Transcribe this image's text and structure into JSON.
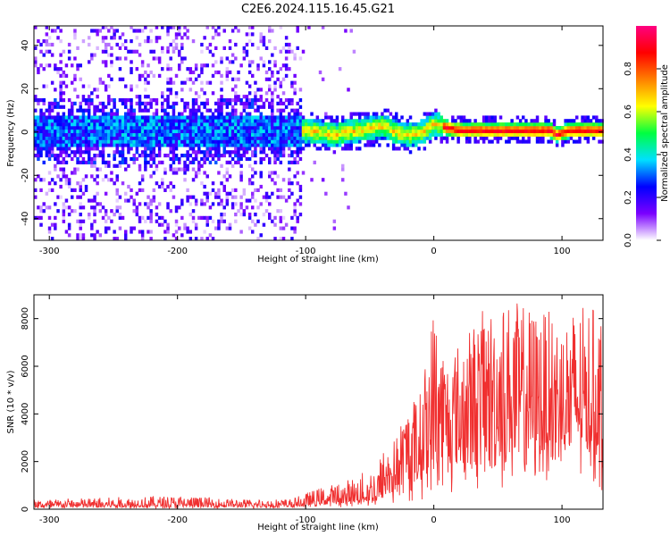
{
  "figure": {
    "title": "C2E6.2024.115.16.45.G21"
  },
  "chart_data": [
    {
      "type": "heatmap",
      "title": "C2E6.2024.115.16.45.G21",
      "xlabel": "Height of straight line (km)",
      "ylabel": "Frequency (Hz)",
      "xlim": [
        -312,
        132
      ],
      "ylim": [
        -50,
        49
      ],
      "x_ticks": [
        -300,
        -200,
        -100,
        0,
        100
      ],
      "y_ticks": [
        -40,
        -20,
        0,
        20,
        40
      ],
      "colorbar": {
        "label": "Normalized spectral amplitude",
        "range": [
          0,
          1
        ],
        "ticks": [
          0.0,
          0.2,
          0.4,
          0.6,
          0.8
        ],
        "colors": [
          "#ffffff",
          "#7a00ff",
          "#0000ff",
          "#00e0ff",
          "#00ff40",
          "#ffff00",
          "#ff8000",
          "#ff0000",
          "#ff0080"
        ]
      },
      "band_center": [
        {
          "x": -312,
          "y": 0
        },
        {
          "x": -100,
          "y": 0
        },
        {
          "x": -80,
          "y": -2
        },
        {
          "x": -60,
          "y": 0
        },
        {
          "x": -40,
          "y": 2
        },
        {
          "x": -30,
          "y": -1
        },
        {
          "x": -20,
          "y": -2
        },
        {
          "x": -10,
          "y": -1
        },
        {
          "x": -5,
          "y": 1
        },
        {
          "x": 0,
          "y": 3
        },
        {
          "x": 10,
          "y": 1
        },
        {
          "x": 20,
          "y": 0
        },
        {
          "x": 90,
          "y": 0
        },
        {
          "x": 95,
          "y": -2
        },
        {
          "x": 105,
          "y": 0
        },
        {
          "x": 132,
          "y": 0
        }
      ],
      "noise_region": [
        -312,
        -105
      ]
    },
    {
      "type": "line",
      "xlabel": "Height of straight line (km)",
      "ylabel": "SNR (10 * v/v)",
      "xlim": [
        -312,
        132
      ],
      "ylim": [
        0,
        9000
      ],
      "x_ticks": [
        -300,
        -200,
        -100,
        0,
        100
      ],
      "y_ticks": [
        0,
        2000,
        4000,
        6000,
        8000
      ],
      "color": "#f03030",
      "envelope": [
        {
          "x": -312,
          "base": 200,
          "peak": 420
        },
        {
          "x": -200,
          "base": 220,
          "peak": 580
        },
        {
          "x": -150,
          "base": 220,
          "peak": 420
        },
        {
          "x": -110,
          "base": 250,
          "peak": 450
        },
        {
          "x": -90,
          "base": 400,
          "peak": 900
        },
        {
          "x": -70,
          "base": 500,
          "peak": 1200
        },
        {
          "x": -50,
          "base": 700,
          "peak": 1700
        },
        {
          "x": -40,
          "base": 900,
          "peak": 2500
        },
        {
          "x": -30,
          "base": 1200,
          "peak": 3000
        },
        {
          "x": -20,
          "base": 1500,
          "peak": 4500
        },
        {
          "x": -10,
          "base": 2200,
          "peak": 5000
        },
        {
          "x": 0,
          "base": 2800,
          "peak": 8700
        },
        {
          "x": 10,
          "base": 3200,
          "peak": 6500
        },
        {
          "x": 25,
          "base": 3800,
          "peak": 7500
        },
        {
          "x": 40,
          "base": 4000,
          "peak": 8500
        },
        {
          "x": 60,
          "base": 4200,
          "peak": 8800
        },
        {
          "x": 80,
          "base": 4200,
          "peak": 8400
        },
        {
          "x": 100,
          "base": 4300,
          "peak": 8200
        },
        {
          "x": 120,
          "base": 4300,
          "peak": 8600
        },
        {
          "x": 132,
          "base": 4200,
          "peak": 8200
        }
      ]
    }
  ]
}
